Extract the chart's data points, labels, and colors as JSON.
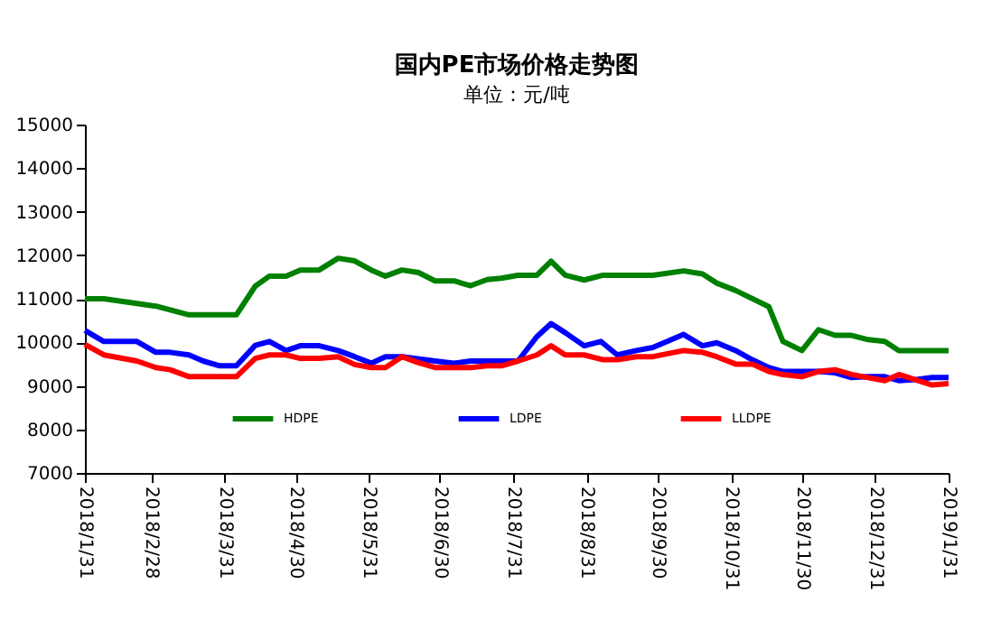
{
  "chart_data": {
    "type": "line",
    "title": "国内PE市场价格走势图",
    "subtitle": "单位：元/吨",
    "xlim": [
      "2018-01-31",
      "2019-01-31"
    ],
    "xticks": [
      {
        "value": "2018-01-31",
        "label": "2018/1/31"
      },
      {
        "value": "2018-02-28",
        "label": "2018/2/28"
      },
      {
        "value": "2018-03-31",
        "label": "2018/3/31"
      },
      {
        "value": "2018-04-30",
        "label": "2018/4/30"
      },
      {
        "value": "2018-05-31",
        "label": "2018/5/31"
      },
      {
        "value": "2018-06-30",
        "label": "2018/6/30"
      },
      {
        "value": "2018-07-31",
        "label": "2018/7/31"
      },
      {
        "value": "2018-08-31",
        "label": "2018/8/31"
      },
      {
        "value": "2018-09-30",
        "label": "2018/9/30"
      },
      {
        "value": "2018-10-31",
        "label": "2018/10/31"
      },
      {
        "value": "2018-11-30",
        "label": "2018/11/30"
      },
      {
        "value": "2018-12-31",
        "label": "2018/12/31"
      },
      {
        "value": "2019-01-31",
        "label": "2019/1/31"
      }
    ],
    "ylim": [
      7000,
      15000
    ],
    "yticks": [
      7000,
      8000,
      9000,
      10000,
      11000,
      12000,
      13000,
      14000,
      15000
    ],
    "grid": false,
    "legend": "bottom",
    "marker": "none",
    "line_style": "solid",
    "series": [
      {
        "name": "HDPE",
        "color": "#008000",
        "x": [
          "2018-01-31",
          "2018-02-08",
          "2018-03-02",
          "2018-03-16",
          "2018-04-05",
          "2018-04-13",
          "2018-04-19",
          "2018-04-26",
          "2018-05-02",
          "2018-05-10",
          "2018-05-18",
          "2018-05-25",
          "2018-06-01",
          "2018-06-07",
          "2018-06-14",
          "2018-06-21",
          "2018-06-28",
          "2018-07-06",
          "2018-07-13",
          "2018-07-20",
          "2018-07-26",
          "2018-08-02",
          "2018-08-10",
          "2018-08-16",
          "2018-08-22",
          "2018-08-30",
          "2018-09-07",
          "2018-09-28",
          "2018-10-11",
          "2018-10-19",
          "2018-10-25",
          "2018-11-02",
          "2018-11-16",
          "2018-11-22",
          "2018-11-30",
          "2018-12-07",
          "2018-12-14",
          "2018-12-21",
          "2018-12-28",
          "2019-01-04",
          "2019-01-10",
          "2019-01-31"
        ],
        "values": [
          11000,
          11000,
          10830,
          10630,
          10630,
          11290,
          11520,
          11520,
          11660,
          11660,
          11930,
          11870,
          11660,
          11520,
          11660,
          11600,
          11410,
          11410,
          11300,
          11440,
          11470,
          11540,
          11540,
          11860,
          11540,
          11430,
          11540,
          11540,
          11640,
          11570,
          11360,
          11190,
          10820,
          10020,
          9810,
          10290,
          10160,
          10160,
          10060,
          10020,
          9810,
          9810
        ]
      },
      {
        "name": "LDPE",
        "color": "#0000ff",
        "x": [
          "2018-01-31",
          "2018-02-08",
          "2018-02-22",
          "2018-03-02",
          "2018-03-08",
          "2018-03-16",
          "2018-03-22",
          "2018-03-29",
          "2018-04-05",
          "2018-04-13",
          "2018-04-19",
          "2018-04-26",
          "2018-05-02",
          "2018-05-10",
          "2018-05-18",
          "2018-05-25",
          "2018-06-01",
          "2018-06-07",
          "2018-06-14",
          "2018-06-28",
          "2018-07-06",
          "2018-07-13",
          "2018-07-20",
          "2018-08-02",
          "2018-08-10",
          "2018-08-16",
          "2018-08-22",
          "2018-08-30",
          "2018-09-06",
          "2018-09-13",
          "2018-09-21",
          "2018-09-28",
          "2018-10-11",
          "2018-10-19",
          "2018-10-25",
          "2018-11-02",
          "2018-11-09",
          "2018-11-16",
          "2018-11-22",
          "2018-11-30",
          "2018-12-07",
          "2018-12-14",
          "2018-12-21",
          "2018-12-28",
          "2019-01-04",
          "2019-01-10",
          "2019-01-18",
          "2019-01-24",
          "2019-01-31"
        ],
        "values": [
          10270,
          10020,
          10020,
          9770,
          9770,
          9710,
          9570,
          9460,
          9460,
          9930,
          10020,
          9810,
          9920,
          9920,
          9810,
          9670,
          9520,
          9670,
          9670,
          9570,
          9520,
          9570,
          9570,
          9570,
          10130,
          10430,
          10220,
          9920,
          10020,
          9710,
          9810,
          9880,
          10180,
          9920,
          9990,
          9810,
          9600,
          9420,
          9330,
          9330,
          9330,
          9300,
          9190,
          9210,
          9210,
          9120,
          9150,
          9190,
          9190
        ]
      },
      {
        "name": "LLDPE",
        "color": "#ff0000",
        "x": [
          "2018-01-31",
          "2018-02-08",
          "2018-02-22",
          "2018-03-02",
          "2018-03-08",
          "2018-03-16",
          "2018-03-22",
          "2018-04-05",
          "2018-04-13",
          "2018-04-19",
          "2018-04-26",
          "2018-05-02",
          "2018-05-10",
          "2018-05-18",
          "2018-05-25",
          "2018-06-01",
          "2018-06-07",
          "2018-06-14",
          "2018-06-21",
          "2018-06-28",
          "2018-07-13",
          "2018-07-20",
          "2018-07-26",
          "2018-08-02",
          "2018-08-10",
          "2018-08-16",
          "2018-08-22",
          "2018-08-30",
          "2018-09-07",
          "2018-09-13",
          "2018-09-21",
          "2018-09-28",
          "2018-10-11",
          "2018-10-19",
          "2018-10-25",
          "2018-11-02",
          "2018-11-09",
          "2018-11-16",
          "2018-11-22",
          "2018-11-30",
          "2018-12-07",
          "2018-12-14",
          "2018-12-21",
          "2018-12-28",
          "2019-01-04",
          "2019-01-10",
          "2019-01-18",
          "2019-01-24",
          "2019-01-31"
        ],
        "values": [
          9950,
          9710,
          9570,
          9420,
          9370,
          9210,
          9210,
          9210,
          9630,
          9710,
          9710,
          9630,
          9630,
          9670,
          9490,
          9420,
          9420,
          9670,
          9530,
          9420,
          9420,
          9460,
          9460,
          9570,
          9710,
          9920,
          9710,
          9710,
          9600,
          9600,
          9670,
          9670,
          9810,
          9770,
          9670,
          9500,
          9500,
          9330,
          9260,
          9210,
          9330,
          9370,
          9260,
          9190,
          9120,
          9260,
          9120,
          9020,
          9050
        ]
      }
    ]
  }
}
